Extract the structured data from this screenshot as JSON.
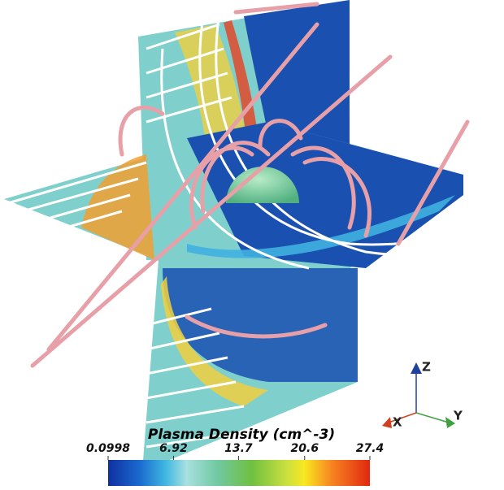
{
  "colorbar": {
    "title": "Plasma Density (cm^-3)",
    "lim": [
      0.0998,
      27.4
    ],
    "ticks": [
      0.0998,
      6.92,
      13.7,
      20.6,
      27.4
    ]
  },
  "axes": {
    "z": "Z",
    "y": "Y",
    "x": "X"
  }
}
